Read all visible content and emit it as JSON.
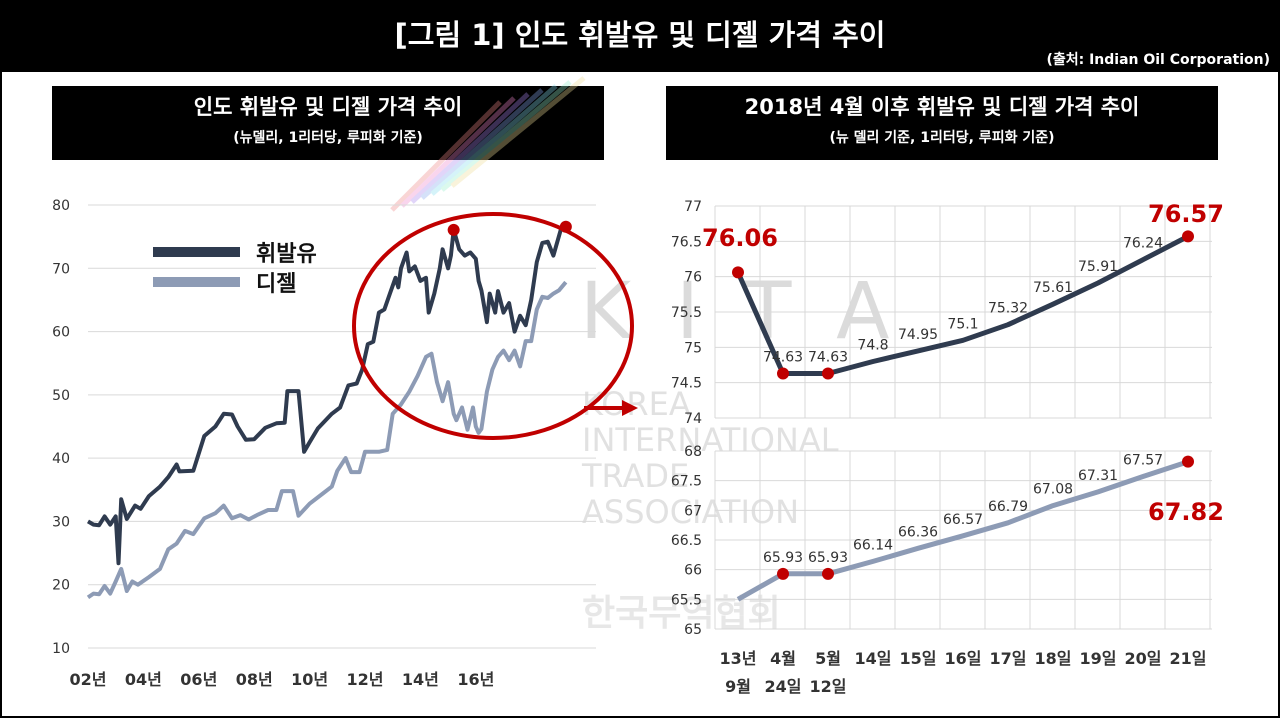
{
  "header": {
    "title": "[그림 1] 인도 휘발유 및 디젤 가격 추이",
    "source": "(출처: Indian Oil Corporation)"
  },
  "watermark": {
    "logo": "K I T A",
    "lines": [
      "KOREA",
      "INTERNATIONAL",
      "TRADE",
      "ASSOCIATION"
    ],
    "korean": "한국무역협회"
  },
  "colors": {
    "petrol": "#2f3b4f",
    "diesel": "#8d9bb5",
    "highlight": "#c00000",
    "grid": "#d9d9d9"
  },
  "chart_data": [
    {
      "type": "line",
      "title": "인도 휘발유 및 디젤 가격 추이",
      "subtitle": "(뉴델리, 1리터당, 루피화 기준)",
      "x_ticks": [
        "02년",
        "04년",
        "06년",
        "08년",
        "10년",
        "12년",
        "14년",
        "16년"
      ],
      "x_range": [
        2002,
        2019.4
      ],
      "ylim": [
        10,
        80
      ],
      "y_ticks": [
        10,
        20,
        30,
        40,
        50,
        60,
        70,
        80
      ],
      "legend": [
        "휘발유",
        "디젤"
      ],
      "series": [
        {
          "name": "휘발유",
          "points": [
            [
              2002.0,
              30.0
            ],
            [
              2002.2,
              29.5
            ],
            [
              2002.4,
              29.4
            ],
            [
              2002.6,
              30.8
            ],
            [
              2002.8,
              29.5
            ],
            [
              2003.0,
              30.8
            ],
            [
              2003.1,
              23.4
            ],
            [
              2003.2,
              33.5
            ],
            [
              2003.4,
              30.4
            ],
            [
              2003.7,
              32.5
            ],
            [
              2003.9,
              32.0
            ],
            [
              2004.2,
              34.0
            ],
            [
              2004.6,
              35.5
            ],
            [
              2004.9,
              37.0
            ],
            [
              2005.2,
              39.0
            ],
            [
              2005.3,
              37.9
            ],
            [
              2005.8,
              38.0
            ],
            [
              2006.2,
              43.5
            ],
            [
              2006.6,
              45.0
            ],
            [
              2006.9,
              47.0
            ],
            [
              2007.2,
              46.9
            ],
            [
              2007.4,
              45.0
            ],
            [
              2007.7,
              42.9
            ],
            [
              2008.0,
              43.0
            ],
            [
              2008.4,
              44.8
            ],
            [
              2008.8,
              45.5
            ],
            [
              2009.1,
              45.6
            ],
            [
              2009.2,
              50.6
            ],
            [
              2009.6,
              50.6
            ],
            [
              2009.8,
              41.0
            ],
            [
              2010.0,
              42.5
            ],
            [
              2010.3,
              44.7
            ],
            [
              2010.8,
              47.0
            ],
            [
              2011.1,
              48.0
            ],
            [
              2011.4,
              51.5
            ],
            [
              2011.7,
              51.8
            ],
            [
              2011.9,
              54.0
            ],
            [
              2012.1,
              58.0
            ],
            [
              2012.3,
              58.4
            ],
            [
              2012.5,
              63.0
            ],
            [
              2012.7,
              63.5
            ],
            [
              2012.9,
              66.0
            ],
            [
              2013.1,
              68.5
            ],
            [
              2013.2,
              67.0
            ],
            [
              2013.3,
              70.0
            ],
            [
              2013.5,
              72.5
            ],
            [
              2013.6,
              69.5
            ],
            [
              2013.8,
              70.3
            ],
            [
              2014.0,
              68.0
            ],
            [
              2014.2,
              68.5
            ],
            [
              2014.3,
              63.0
            ],
            [
              2014.5,
              66.0
            ],
            [
              2014.7,
              70.0
            ],
            [
              2014.8,
              73.0
            ],
            [
              2015.0,
              70.0
            ],
            [
              2015.1,
              72.0
            ],
            [
              2015.2,
              76.1
            ],
            [
              2015.4,
              73.0
            ],
            [
              2015.6,
              72.0
            ],
            [
              2015.8,
              72.5
            ],
            [
              2016.0,
              71.5
            ],
            [
              2016.1,
              68.0
            ],
            [
              2016.2,
              66.5
            ],
            [
              2016.4,
              61.5
            ],
            [
              2016.5,
              66.0
            ],
            [
              2016.7,
              63.0
            ],
            [
              2016.8,
              66.4
            ],
            [
              2017.0,
              63.0
            ],
            [
              2017.2,
              64.5
            ],
            [
              2017.4,
              60.0
            ],
            [
              2017.6,
              62.5
            ],
            [
              2017.8,
              61.0
            ],
            [
              2018.0,
              65.0
            ],
            [
              2018.2,
              71.0
            ],
            [
              2018.4,
              74.0
            ],
            [
              2018.6,
              74.2
            ],
            [
              2018.8,
              72.0
            ],
            [
              2018.9,
              73.5
            ],
            [
              2019.1,
              76.6
            ],
            [
              2019.25,
              76.9
            ]
          ]
        },
        {
          "name": "디젤",
          "points": [
            [
              2002.0,
              18.0
            ],
            [
              2002.2,
              18.6
            ],
            [
              2002.4,
              18.5
            ],
            [
              2002.6,
              19.8
            ],
            [
              2002.8,
              18.6
            ],
            [
              2003.0,
              20.5
            ],
            [
              2003.2,
              22.5
            ],
            [
              2003.4,
              19.0
            ],
            [
              2003.6,
              20.5
            ],
            [
              2003.8,
              20.0
            ],
            [
              2004.2,
              21.2
            ],
            [
              2004.6,
              22.5
            ],
            [
              2004.9,
              25.6
            ],
            [
              2005.2,
              26.5
            ],
            [
              2005.5,
              28.5
            ],
            [
              2005.8,
              28.0
            ],
            [
              2006.2,
              30.5
            ],
            [
              2006.6,
              31.3
            ],
            [
              2006.9,
              32.5
            ],
            [
              2007.2,
              30.5
            ],
            [
              2007.5,
              31.0
            ],
            [
              2007.8,
              30.3
            ],
            [
              2008.1,
              31.0
            ],
            [
              2008.5,
              31.8
            ],
            [
              2008.8,
              31.8
            ],
            [
              2009.0,
              34.8
            ],
            [
              2009.4,
              34.8
            ],
            [
              2009.6,
              30.9
            ],
            [
              2010.0,
              32.8
            ],
            [
              2010.5,
              34.5
            ],
            [
              2010.8,
              35.5
            ],
            [
              2011.0,
              38.0
            ],
            [
              2011.3,
              40.0
            ],
            [
              2011.5,
              37.8
            ],
            [
              2011.8,
              37.8
            ],
            [
              2012.0,
              41.0
            ],
            [
              2012.5,
              41.0
            ],
            [
              2012.8,
              41.3
            ],
            [
              2013.0,
              47.0
            ],
            [
              2013.3,
              48.5
            ],
            [
              2013.6,
              50.5
            ],
            [
              2013.9,
              53.0
            ],
            [
              2014.2,
              56.0
            ],
            [
              2014.4,
              56.5
            ],
            [
              2014.6,
              52.0
            ],
            [
              2014.8,
              49.0
            ],
            [
              2015.0,
              52.0
            ],
            [
              2015.2,
              47.0
            ],
            [
              2015.3,
              46.0
            ],
            [
              2015.5,
              48.0
            ],
            [
              2015.7,
              44.5
            ],
            [
              2015.9,
              48.0
            ],
            [
              2016.0,
              45.0
            ],
            [
              2016.1,
              44.0
            ],
            [
              2016.2,
              44.6
            ],
            [
              2016.4,
              50.5
            ],
            [
              2016.6,
              54.0
            ],
            [
              2016.8,
              56.0
            ],
            [
              2017.0,
              57.0
            ],
            [
              2017.2,
              55.5
            ],
            [
              2017.4,
              57.0
            ],
            [
              2017.6,
              54.5
            ],
            [
              2017.8,
              58.5
            ],
            [
              2018.0,
              58.5
            ],
            [
              2018.2,
              63.5
            ],
            [
              2018.4,
              65.5
            ],
            [
              2018.6,
              65.3
            ],
            [
              2018.8,
              66.0
            ],
            [
              2019.0,
              66.5
            ],
            [
              2019.25,
              67.8
            ]
          ]
        }
      ],
      "markers": [
        [
          2015.2,
          76.06
        ],
        [
          2019.25,
          76.57
        ]
      ]
    },
    {
      "type": "line",
      "title": "2018년 4월 이후 휘발유 및 디젤 가격 추이",
      "subtitle": "(뉴 델리 기준, 1리터당, 루피화 기준)",
      "categories": [
        [
          "13년",
          "9월"
        ],
        [
          "4월",
          "24일"
        ],
        [
          "5월",
          "12일"
        ],
        [
          "14일"
        ],
        [
          "15일"
        ],
        [
          "16일"
        ],
        [
          "17일"
        ],
        [
          "18일"
        ],
        [
          "19일"
        ],
        [
          "20일"
        ],
        [
          "21일"
        ]
      ],
      "series": [
        {
          "name": "휘발유",
          "values": [
            76.06,
            74.63,
            74.63,
            74.8,
            74.95,
            75.1,
            75.32,
            75.61,
            75.91,
            76.24,
            76.57
          ],
          "labels": [
            "76.06",
            "74.63",
            "74.63",
            "74.8",
            "74.95",
            "75.1",
            "75.32",
            "75.61",
            "75.91",
            "76.24",
            "76.57"
          ],
          "ylim": [
            74,
            77
          ],
          "y_ticks": [
            "74",
            "74.5",
            "75",
            "75.5",
            "76",
            "76.5",
            "77"
          ]
        },
        {
          "name": "디젤",
          "values": [
            65.5,
            65.93,
            65.93,
            66.14,
            66.36,
            66.57,
            66.79,
            67.08,
            67.31,
            67.57,
            67.82
          ],
          "labels": [
            "",
            "65.93",
            "65.93",
            "66.14",
            "66.36",
            "66.57",
            "66.79",
            "67.08",
            "67.31",
            "67.57",
            "67.82"
          ],
          "ylim": [
            65,
            68
          ],
          "y_ticks": [
            "65",
            "65.5",
            "66",
            "66.5",
            "67",
            "67.5",
            "68"
          ]
        }
      ],
      "highlight_indices": [
        1,
        2,
        10
      ]
    }
  ]
}
